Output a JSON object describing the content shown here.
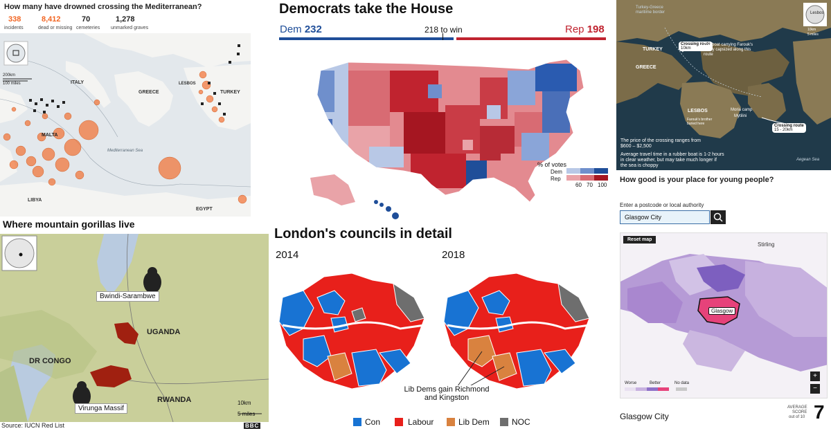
{
  "drowned": {
    "title": "How many have drowned crossing the Mediterranean?",
    "stats": [
      {
        "value": "338",
        "label": "incidents",
        "color": "#f26522"
      },
      {
        "value": "8,412",
        "label": "dead or missing",
        "color": "#f26522"
      },
      {
        "value": "70",
        "label": "cemeteries",
        "color": "#222222"
      },
      {
        "value": "1,278",
        "label": "unmarked graves",
        "color": "#222222"
      }
    ],
    "places": {
      "italy": "ITALY",
      "greece": "GREECE",
      "lesbos": "LESBOS",
      "turkey": "TURKEY",
      "malta": "MALTA",
      "libya": "LIBYA",
      "egypt": "EGYPT",
      "sea": "Mediterranean Sea"
    },
    "scale": {
      "km": "200km",
      "miles": "100 miles"
    }
  },
  "house": {
    "title": "Democrats take the House",
    "dem_label": "Dem",
    "dem_seats": "232",
    "rep_label": "Rep",
    "rep_seats": "198",
    "to_win": "218 to win",
    "legend_title": "% of votes",
    "legend_dem": "Dem",
    "legend_rep": "Rep",
    "legend_ticks": [
      "60",
      "70",
      "100"
    ],
    "colors": {
      "dem": "#1f4e99",
      "rep": "#c0232f"
    }
  },
  "lesbos": {
    "labels": {
      "border": "Turkey-Greece maritime border",
      "route1": "Crossing route",
      "route1_dist": "10km",
      "boat": "The boat carrying Farouk's family capsized along this route",
      "turkey": "TURKEY",
      "greece": "GREECE",
      "lesbos": "LESBOS",
      "moria": "Moria camp",
      "mytilini": "Mytilini",
      "route2": "Crossing route",
      "route2_dist": "15 - 20km",
      "brother": "Farouk's brother buried here",
      "aegean": "Aegean Sea",
      "price": "The price of the crossing ranges from $600 – $2,500",
      "travel": "Average travel time in a rubber boat is 1-2 hours in clear weather, but may take much longer if the sea is choppy",
      "map_label": "Lesbos"
    },
    "scale": {
      "km": "10km",
      "miles": "5 miles"
    }
  },
  "young": {
    "title": "How good is your place for young people?",
    "input_label": "Enter a postcode or local authority",
    "input_value": "Glasgow City",
    "reset": "Reset map",
    "stirling": "Stirling",
    "glasgow": "Glasgow",
    "legend_worse": "Worse",
    "legend_better": "Better",
    "legend_nodata": "No data",
    "place": "Glasgow City",
    "score_label_1": "AVERAGE",
    "score_label_2": "SCORE",
    "score_label_3": "out of 10",
    "score": "7"
  },
  "gorillas": {
    "title": "Where mountain gorillas live",
    "bwindi": "Bwindi-Sarambwe",
    "virunga": "Virunga Massif",
    "uganda": "UGANDA",
    "drc": "DR CONGO",
    "rwanda": "RWANDA",
    "scale": {
      "km": "10km",
      "miles": "5 miles"
    },
    "source": "Source: IUCN Red List",
    "logo": "BBC"
  },
  "london": {
    "title": "London's councils in detail",
    "year1": "2014",
    "year2": "2018",
    "annotation": "Lib Dems gain Richmond and Kingston",
    "legend": [
      {
        "label": "Con",
        "color": "#1873d3"
      },
      {
        "label": "Labour",
        "color": "#e8201b"
      },
      {
        "label": "Lib Dem",
        "color": "#d9823f"
      },
      {
        "label": "NOC",
        "color": "#6e6e6e"
      }
    ]
  }
}
